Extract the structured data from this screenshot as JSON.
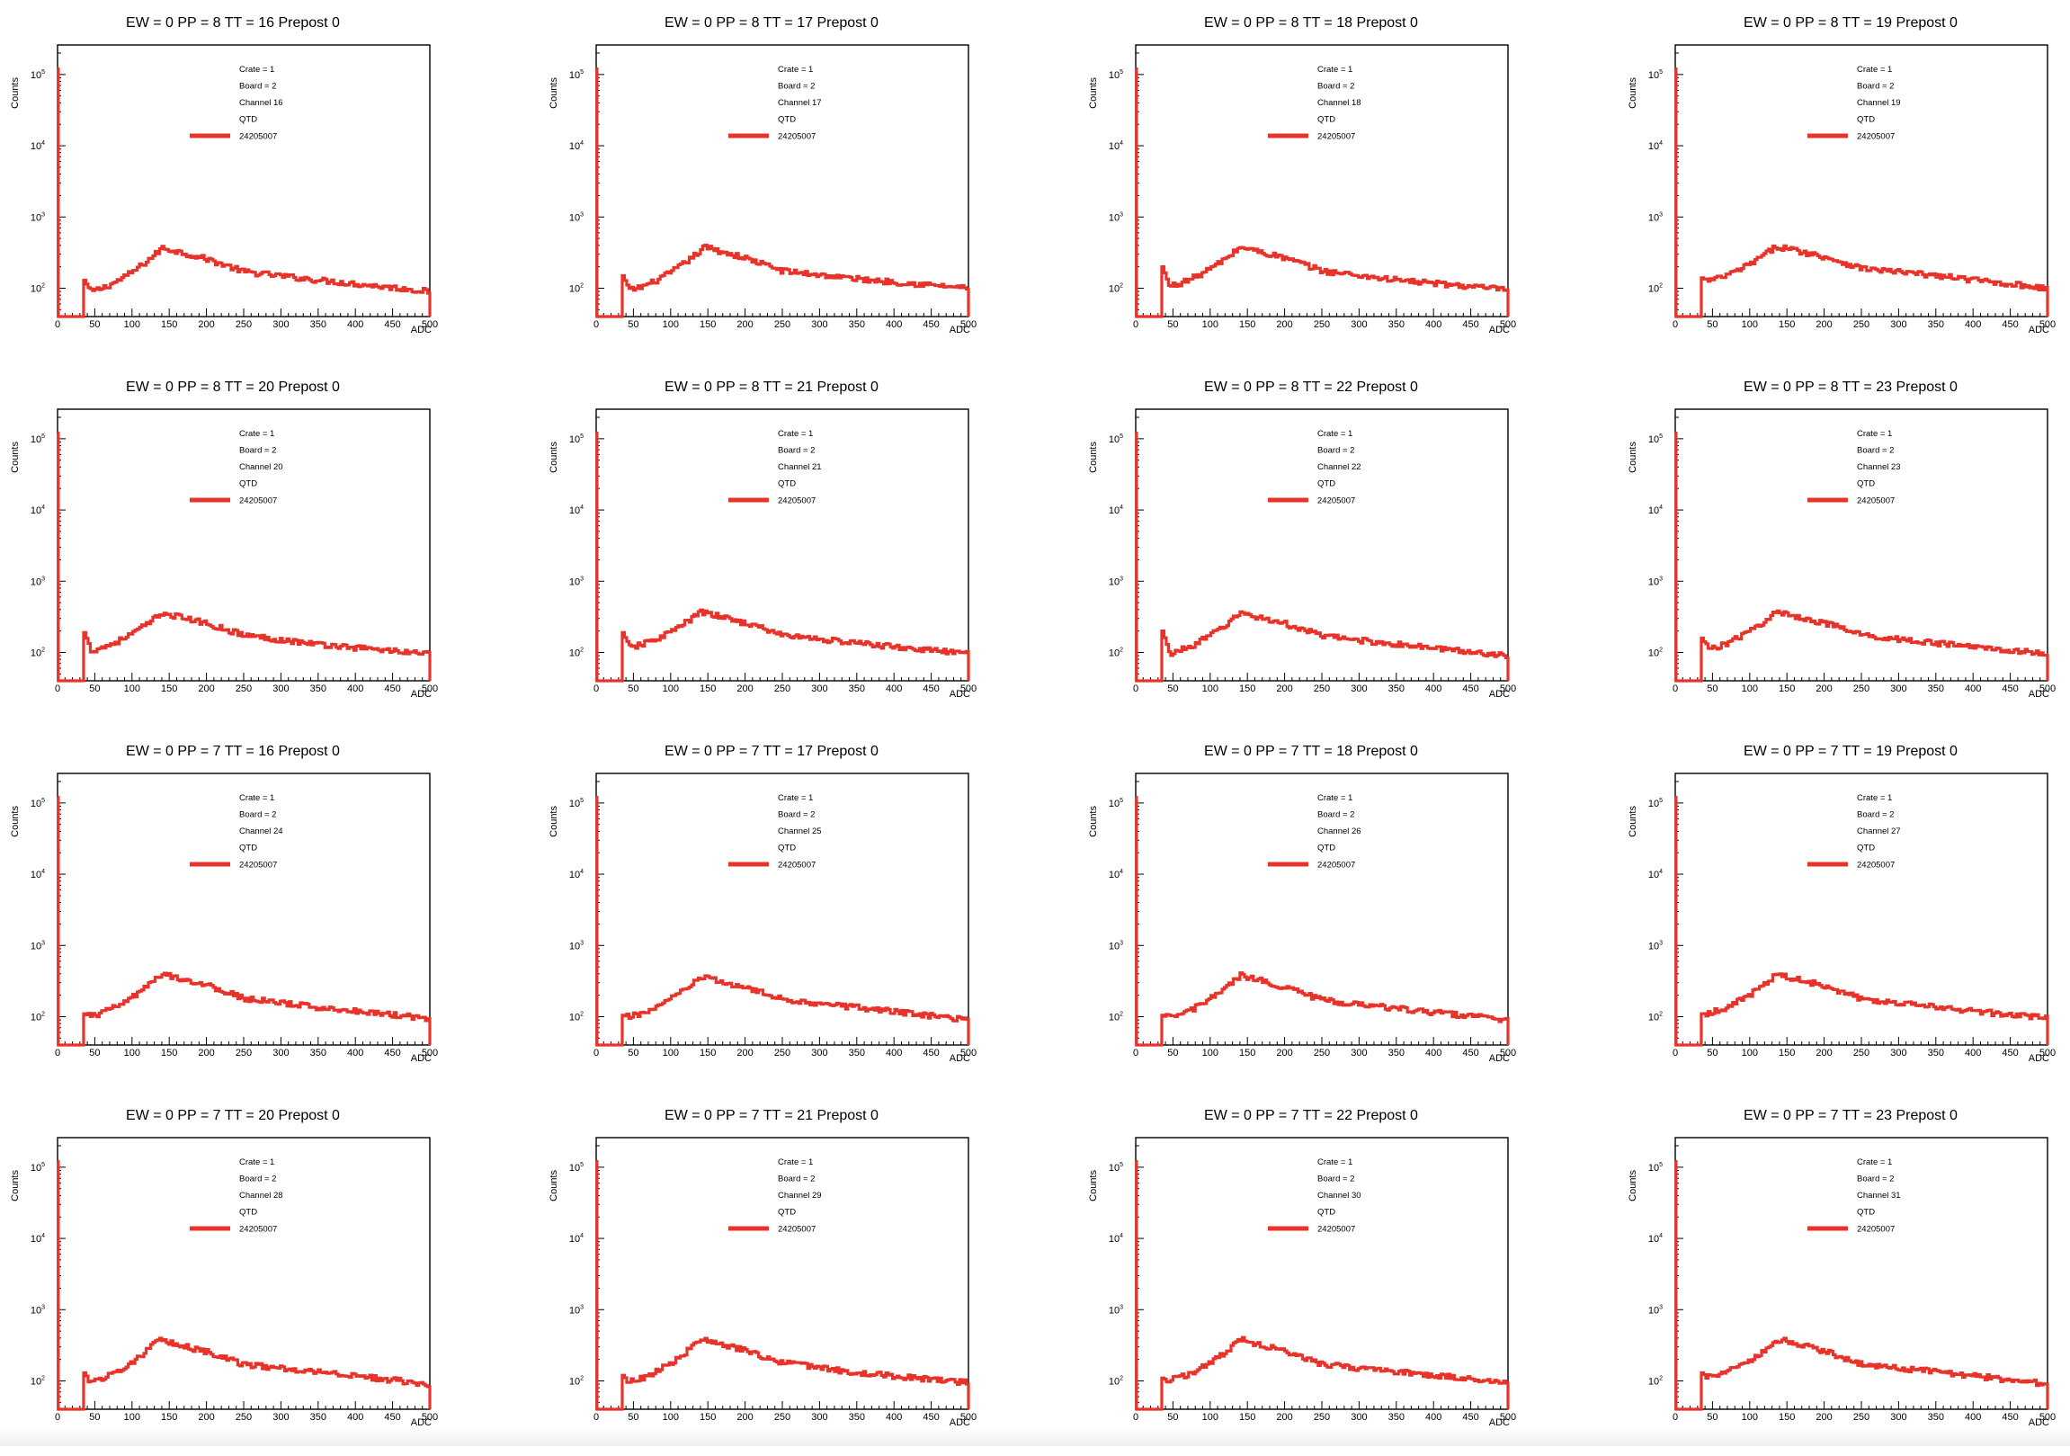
{
  "page": {
    "background": "#ffffff"
  },
  "chart_data": [
    {
      "type": "histogram",
      "title": "EW = 0 PP = 8 TT = 16 Prepost 0",
      "xlabel": "ADC",
      "ylabel": "Counts",
      "xlim": [
        0,
        500
      ],
      "yscale": "log",
      "ytick_exponents": [
        2,
        3,
        4,
        5
      ],
      "xticks": [
        0,
        50,
        100,
        150,
        200,
        250,
        300,
        350,
        400,
        450,
        500
      ],
      "legend": {
        "position": "top-center",
        "lines": [
          "Crate = 1",
          "Board = 2",
          "Channel 16",
          "QTD"
        ],
        "series_label": "24205007"
      },
      "series": [
        {
          "name": "24205007",
          "color": "#e8332a",
          "pedestal_count": 120000,
          "threshold_adc": 35,
          "edge_count": 130,
          "dip_count": 88,
          "peak_adc": 140,
          "peak_count": 370,
          "tail_counts": {
            "250": 170,
            "350": 130,
            "500": 90
          }
        }
      ]
    },
    {
      "type": "histogram",
      "title": "EW = 0 PP = 8 TT = 17 Prepost 0",
      "xlabel": "ADC",
      "ylabel": "Counts",
      "xlim": [
        0,
        500
      ],
      "yscale": "log",
      "ytick_exponents": [
        2,
        3,
        4,
        5
      ],
      "xticks": [
        0,
        50,
        100,
        150,
        200,
        250,
        300,
        350,
        400,
        450,
        500
      ],
      "legend": {
        "position": "top-center",
        "lines": [
          "Crate = 1",
          "Board = 2",
          "Channel 17",
          "QTD"
        ],
        "series_label": "24205007"
      },
      "series": [
        {
          "name": "24205007",
          "color": "#e8332a",
          "pedestal_count": 120000,
          "threshold_adc": 35,
          "edge_count": 150,
          "dip_count": 92,
          "peak_adc": 145,
          "peak_count": 380,
          "tail_counts": {
            "250": 175,
            "350": 135,
            "500": 100
          }
        }
      ]
    },
    {
      "type": "histogram",
      "title": "EW = 0 PP = 8 TT = 18 Prepost 0",
      "xlabel": "ADC",
      "ylabel": "Counts",
      "xlim": [
        0,
        500
      ],
      "yscale": "log",
      "ytick_exponents": [
        2,
        3,
        4,
        5
      ],
      "xticks": [
        0,
        50,
        100,
        150,
        200,
        250,
        300,
        350,
        400,
        450,
        500
      ],
      "legend": {
        "position": "top-center",
        "lines": [
          "Crate = 1",
          "Board = 2",
          "Channel 18",
          "QTD"
        ],
        "series_label": "24205007"
      },
      "series": [
        {
          "name": "24205007",
          "color": "#e8332a",
          "pedestal_count": 120000,
          "threshold_adc": 35,
          "edge_count": 200,
          "dip_count": 105,
          "peak_adc": 140,
          "peak_count": 380,
          "tail_counts": {
            "250": 175,
            "350": 130,
            "500": 95
          }
        }
      ]
    },
    {
      "type": "histogram",
      "title": "EW = 0 PP = 8 TT = 19 Prepost 0",
      "xlabel": "ADC",
      "ylabel": "Counts",
      "xlim": [
        0,
        500
      ],
      "yscale": "log",
      "ytick_exponents": [
        2,
        3,
        4,
        5
      ],
      "xticks": [
        0,
        50,
        100,
        150,
        200,
        250,
        300,
        350,
        400,
        450,
        500
      ],
      "legend": {
        "position": "top-center",
        "lines": [
          "Crate = 1",
          "Board = 2",
          "Channel 19",
          "QTD"
        ],
        "series_label": "24205007"
      },
      "series": [
        {
          "name": "24205007",
          "color": "#e8332a",
          "pedestal_count": 120000,
          "threshold_adc": 35,
          "edge_count": 140,
          "dip_count": 125,
          "peak_adc": 135,
          "peak_count": 390,
          "tail_counts": {
            "250": 190,
            "350": 150,
            "500": 100
          }
        }
      ]
    },
    {
      "type": "histogram",
      "title": "EW = 0 PP = 8 TT = 20 Prepost 0",
      "xlabel": "ADC",
      "ylabel": "Counts",
      "xlim": [
        0,
        500
      ],
      "yscale": "log",
      "ytick_exponents": [
        2,
        3,
        4,
        5
      ],
      "xticks": [
        0,
        50,
        100,
        150,
        200,
        250,
        300,
        350,
        400,
        450,
        500
      ],
      "legend": {
        "position": "top-center",
        "lines": [
          "Crate = 1",
          "Board = 2",
          "Channel 20",
          "QTD"
        ],
        "series_label": "24205007"
      },
      "series": [
        {
          "name": "24205007",
          "color": "#e8332a",
          "pedestal_count": 120000,
          "threshold_adc": 35,
          "edge_count": 190,
          "dip_count": 105,
          "peak_adc": 140,
          "peak_count": 360,
          "tail_counts": {
            "250": 175,
            "350": 130,
            "500": 95
          }
        }
      ]
    },
    {
      "type": "histogram",
      "title": "EW = 0 PP = 8 TT = 21 Prepost 0",
      "xlabel": "ADC",
      "ylabel": "Counts",
      "xlim": [
        0,
        500
      ],
      "yscale": "log",
      "ytick_exponents": [
        2,
        3,
        4,
        5
      ],
      "xticks": [
        0,
        50,
        100,
        150,
        200,
        250,
        300,
        350,
        400,
        450,
        500
      ],
      "legend": {
        "position": "top-center",
        "lines": [
          "Crate = 1",
          "Board = 2",
          "Channel 21",
          "QTD"
        ],
        "series_label": "24205007"
      },
      "series": [
        {
          "name": "24205007",
          "color": "#e8332a",
          "pedestal_count": 120000,
          "threshold_adc": 35,
          "edge_count": 190,
          "dip_count": 115,
          "peak_adc": 140,
          "peak_count": 370,
          "tail_counts": {
            "250": 175,
            "350": 135,
            "500": 95
          }
        }
      ]
    },
    {
      "type": "histogram",
      "title": "EW = 0 PP = 8 TT = 22 Prepost 0",
      "xlabel": "ADC",
      "ylabel": "Counts",
      "xlim": [
        0,
        500
      ],
      "yscale": "log",
      "ytick_exponents": [
        2,
        3,
        4,
        5
      ],
      "xticks": [
        0,
        50,
        100,
        150,
        200,
        250,
        300,
        350,
        400,
        450,
        500
      ],
      "legend": {
        "position": "top-center",
        "lines": [
          "Crate = 1",
          "Board = 2",
          "Channel 22",
          "QTD"
        ],
        "series_label": "24205007"
      },
      "series": [
        {
          "name": "24205007",
          "color": "#e8332a",
          "pedestal_count": 120000,
          "threshold_adc": 35,
          "edge_count": 200,
          "dip_count": 95,
          "peak_adc": 140,
          "peak_count": 360,
          "tail_counts": {
            "250": 170,
            "350": 130,
            "500": 90
          }
        }
      ]
    },
    {
      "type": "histogram",
      "title": "EW = 0 PP = 8 TT = 23 Prepost 0",
      "xlabel": "ADC",
      "ylabel": "Counts",
      "xlim": [
        0,
        500
      ],
      "yscale": "log",
      "ytick_exponents": [
        2,
        3,
        4,
        5
      ],
      "xticks": [
        0,
        50,
        100,
        150,
        200,
        250,
        300,
        350,
        400,
        450,
        500
      ],
      "legend": {
        "position": "top-center",
        "lines": [
          "Crate = 1",
          "Board = 2",
          "Channel 23",
          "QTD"
        ],
        "series_label": "24205007"
      },
      "series": [
        {
          "name": "24205007",
          "color": "#e8332a",
          "pedestal_count": 120000,
          "threshold_adc": 35,
          "edge_count": 160,
          "dip_count": 110,
          "peak_adc": 135,
          "peak_count": 370,
          "tail_counts": {
            "250": 175,
            "350": 135,
            "500": 95
          }
        }
      ]
    },
    {
      "type": "histogram",
      "title": "EW = 0 PP = 7 TT = 16 Prepost 0",
      "xlabel": "ADC",
      "ylabel": "Counts",
      "xlim": [
        0,
        500
      ],
      "yscale": "log",
      "ytick_exponents": [
        2,
        3,
        4,
        5
      ],
      "xticks": [
        0,
        50,
        100,
        150,
        200,
        250,
        300,
        350,
        400,
        450,
        500
      ],
      "legend": {
        "position": "top-center",
        "lines": [
          "Crate = 1",
          "Board = 2",
          "Channel 24",
          "QTD"
        ],
        "series_label": "24205007"
      },
      "series": [
        {
          "name": "24205007",
          "color": "#e8332a",
          "pedestal_count": 120000,
          "threshold_adc": 35,
          "edge_count": 110,
          "dip_count": 100,
          "peak_adc": 140,
          "peak_count": 400,
          "tail_counts": {
            "250": 180,
            "350": 135,
            "500": 95
          }
        }
      ]
    },
    {
      "type": "histogram",
      "title": "EW = 0 PP = 7 TT = 17 Prepost 0",
      "xlabel": "ADC",
      "ylabel": "Counts",
      "xlim": [
        0,
        500
      ],
      "yscale": "log",
      "ytick_exponents": [
        2,
        3,
        4,
        5
      ],
      "xticks": [
        0,
        50,
        100,
        150,
        200,
        250,
        300,
        350,
        400,
        450,
        500
      ],
      "legend": {
        "position": "top-center",
        "lines": [
          "Crate = 1",
          "Board = 2",
          "Channel 25",
          "QTD"
        ],
        "series_label": "24205007"
      },
      "series": [
        {
          "name": "24205007",
          "color": "#e8332a",
          "pedestal_count": 120000,
          "threshold_adc": 35,
          "edge_count": 105,
          "dip_count": 98,
          "peak_adc": 140,
          "peak_count": 360,
          "tail_counts": {
            "250": 175,
            "350": 135,
            "500": 90
          }
        }
      ]
    },
    {
      "type": "histogram",
      "title": "EW = 0 PP = 7 TT = 18 Prepost 0",
      "xlabel": "ADC",
      "ylabel": "Counts",
      "xlim": [
        0,
        500
      ],
      "yscale": "log",
      "ytick_exponents": [
        2,
        3,
        4,
        5
      ],
      "xticks": [
        0,
        50,
        100,
        150,
        200,
        250,
        300,
        350,
        400,
        450,
        500
      ],
      "legend": {
        "position": "top-center",
        "lines": [
          "Crate = 1",
          "Board = 2",
          "Channel 26",
          "QTD"
        ],
        "series_label": "24205007"
      },
      "series": [
        {
          "name": "24205007",
          "color": "#e8332a",
          "pedestal_count": 120000,
          "threshold_adc": 35,
          "edge_count": 105,
          "dip_count": 95,
          "peak_adc": 140,
          "peak_count": 380,
          "tail_counts": {
            "250": 170,
            "350": 130,
            "500": 90
          }
        }
      ]
    },
    {
      "type": "histogram",
      "title": "EW = 0 PP = 7 TT = 19 Prepost 0",
      "xlabel": "ADC",
      "ylabel": "Counts",
      "xlim": [
        0,
        500
      ],
      "yscale": "log",
      "ytick_exponents": [
        2,
        3,
        4,
        5
      ],
      "xticks": [
        0,
        50,
        100,
        150,
        200,
        250,
        300,
        350,
        400,
        450,
        500
      ],
      "legend": {
        "position": "top-center",
        "lines": [
          "Crate = 1",
          "Board = 2",
          "Channel 27",
          "QTD"
        ],
        "series_label": "24205007"
      },
      "series": [
        {
          "name": "24205007",
          "color": "#e8332a",
          "pedestal_count": 120000,
          "threshold_adc": 35,
          "edge_count": 110,
          "dip_count": 110,
          "peak_adc": 135,
          "peak_count": 390,
          "tail_counts": {
            "250": 180,
            "350": 135,
            "500": 95
          }
        }
      ]
    },
    {
      "type": "histogram",
      "title": "EW = 0 PP = 7 TT = 20 Prepost 0",
      "xlabel": "ADC",
      "ylabel": "Counts",
      "xlim": [
        0,
        500
      ],
      "yscale": "log",
      "ytick_exponents": [
        2,
        3,
        4,
        5
      ],
      "xticks": [
        0,
        50,
        100,
        150,
        200,
        250,
        300,
        350,
        400,
        450,
        500
      ],
      "legend": {
        "position": "top-center",
        "lines": [
          "Crate = 1",
          "Board = 2",
          "Channel 28",
          "QTD"
        ],
        "series_label": "24205007"
      },
      "series": [
        {
          "name": "24205007",
          "color": "#e8332a",
          "pedestal_count": 120000,
          "threshold_adc": 35,
          "edge_count": 130,
          "dip_count": 95,
          "peak_adc": 135,
          "peak_count": 370,
          "tail_counts": {
            "250": 170,
            "350": 135,
            "500": 90
          }
        }
      ]
    },
    {
      "type": "histogram",
      "title": "EW = 0 PP = 7 TT = 21 Prepost 0",
      "xlabel": "ADC",
      "ylabel": "Counts",
      "xlim": [
        0,
        500
      ],
      "yscale": "log",
      "ytick_exponents": [
        2,
        3,
        4,
        5
      ],
      "xticks": [
        0,
        50,
        100,
        150,
        200,
        250,
        300,
        350,
        400,
        450,
        500
      ],
      "legend": {
        "position": "top-center",
        "lines": [
          "Crate = 1",
          "Board = 2",
          "Channel 29",
          "QTD"
        ],
        "series_label": "24205007"
      },
      "series": [
        {
          "name": "24205007",
          "color": "#e8332a",
          "pedestal_count": 120000,
          "threshold_adc": 35,
          "edge_count": 120,
          "dip_count": 95,
          "peak_adc": 140,
          "peak_count": 380,
          "tail_counts": {
            "250": 180,
            "350": 130,
            "500": 95
          }
        }
      ]
    },
    {
      "type": "histogram",
      "title": "EW = 0 PP = 7 TT = 22 Prepost 0",
      "xlabel": "ADC",
      "ylabel": "Counts",
      "xlim": [
        0,
        500
      ],
      "yscale": "log",
      "ytick_exponents": [
        2,
        3,
        4,
        5
      ],
      "xticks": [
        0,
        50,
        100,
        150,
        200,
        250,
        300,
        350,
        400,
        450,
        500
      ],
      "legend": {
        "position": "top-center",
        "lines": [
          "Crate = 1",
          "Board = 2",
          "Channel 30",
          "QTD"
        ],
        "series_label": "24205007"
      },
      "series": [
        {
          "name": "24205007",
          "color": "#e8332a",
          "pedestal_count": 120000,
          "threshold_adc": 35,
          "edge_count": 110,
          "dip_count": 100,
          "peak_adc": 140,
          "peak_count": 380,
          "tail_counts": {
            "250": 170,
            "350": 135,
            "500": 95
          }
        }
      ]
    },
    {
      "type": "histogram",
      "title": "EW = 0 PP = 7 TT = 23 Prepost 0",
      "xlabel": "ADC",
      "ylabel": "Counts",
      "xlim": [
        0,
        500
      ],
      "yscale": "log",
      "ytick_exponents": [
        2,
        3,
        4,
        5
      ],
      "xticks": [
        0,
        50,
        100,
        150,
        200,
        250,
        300,
        350,
        400,
        450,
        500
      ],
      "legend": {
        "position": "top-center",
        "lines": [
          "Crate = 1",
          "Board = 2",
          "Channel 31",
          "QTD"
        ],
        "series_label": "24205007"
      },
      "series": [
        {
          "name": "24205007",
          "color": "#e8332a",
          "pedestal_count": 120000,
          "threshold_adc": 35,
          "edge_count": 130,
          "dip_count": 110,
          "peak_adc": 140,
          "peak_count": 380,
          "tail_counts": {
            "250": 170,
            "350": 135,
            "500": 90
          }
        }
      ]
    }
  ]
}
